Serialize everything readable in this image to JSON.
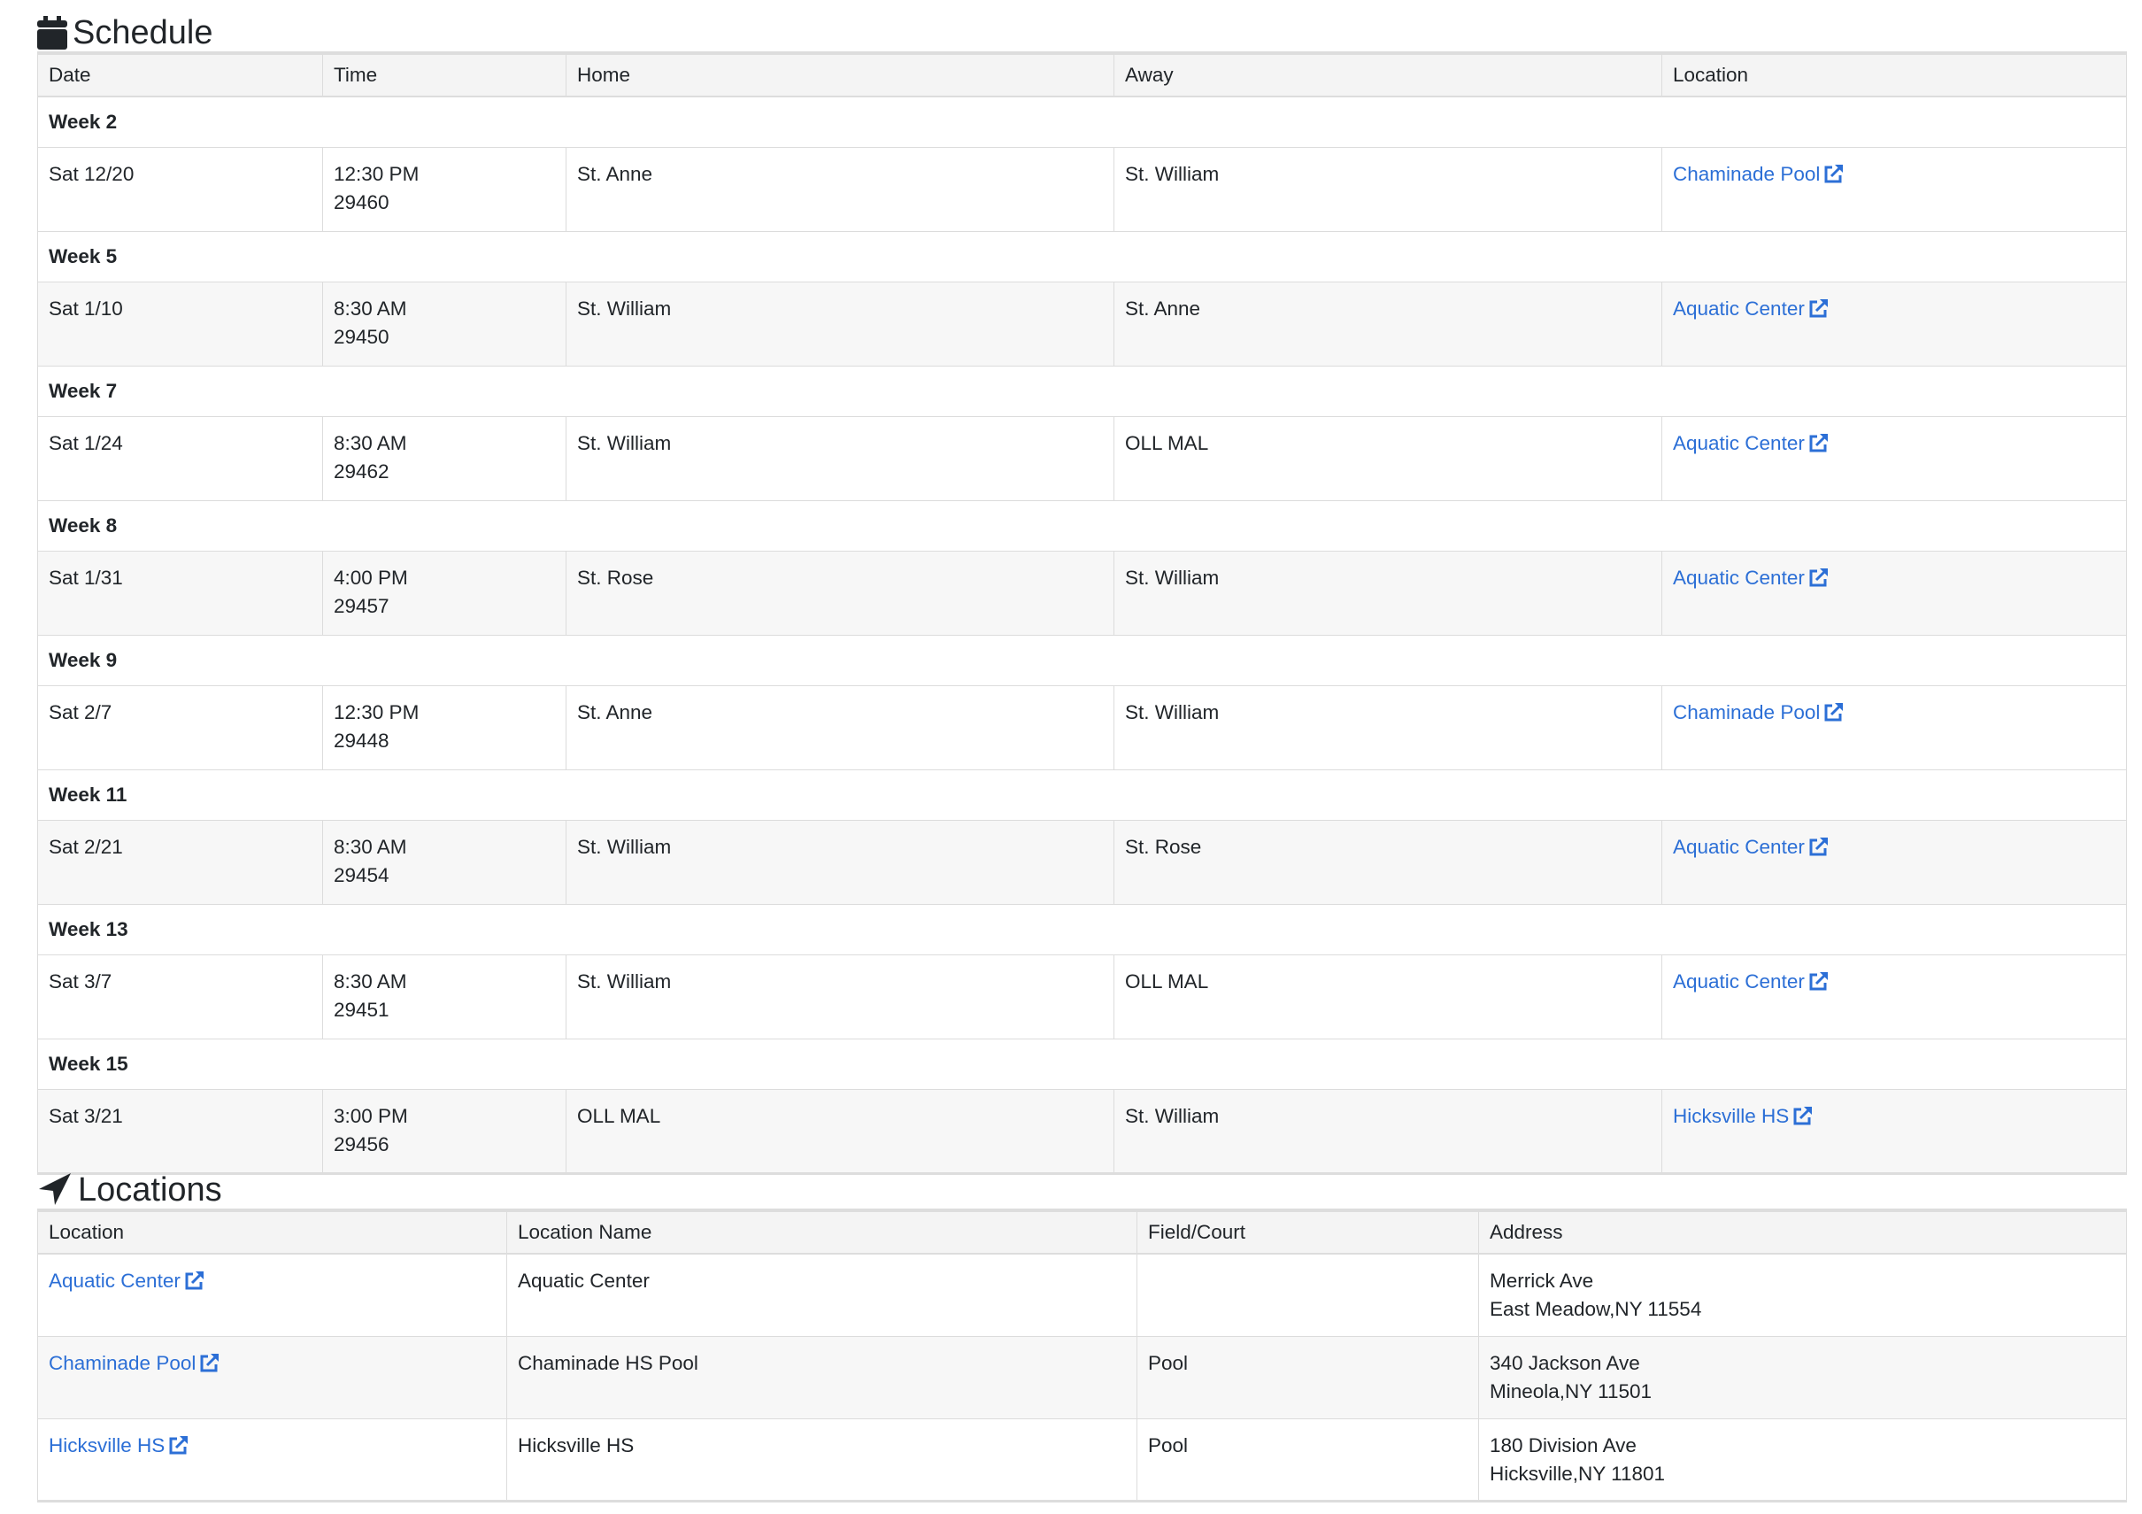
{
  "schedule": {
    "title": "Schedule",
    "columns": [
      "Date",
      "Time",
      "Home",
      "Away",
      "Location"
    ],
    "weeks": [
      {
        "label": "Week 2",
        "date": "Sat 12/20",
        "time": "12:30 PM",
        "game_id": "29460",
        "home": "St. Anne",
        "away": "St. William",
        "location": "Chaminade Pool"
      },
      {
        "label": "Week 5",
        "date": "Sat 1/10",
        "time": "8:30 AM",
        "game_id": "29450",
        "home": "St. William",
        "away": "St. Anne",
        "location": "Aquatic Center"
      },
      {
        "label": "Week 7",
        "date": "Sat 1/24",
        "time": "8:30 AM",
        "game_id": "29462",
        "home": "St. William",
        "away": "OLL MAL",
        "location": "Aquatic Center"
      },
      {
        "label": "Week 8",
        "date": "Sat 1/31",
        "time": "4:00 PM",
        "game_id": "29457",
        "home": "St. Rose",
        "away": "St. William",
        "location": "Aquatic Center"
      },
      {
        "label": "Week 9",
        "date": "Sat 2/7",
        "time": "12:30 PM",
        "game_id": "29448",
        "home": "St. Anne",
        "away": "St. William",
        "location": "Chaminade Pool"
      },
      {
        "label": "Week 11",
        "date": "Sat 2/21",
        "time": "8:30 AM",
        "game_id": "29454",
        "home": "St. William",
        "away": "St. Rose",
        "location": "Aquatic Center"
      },
      {
        "label": "Week 13",
        "date": "Sat 3/7",
        "time": "8:30 AM",
        "game_id": "29451",
        "home": "St. William",
        "away": "OLL MAL",
        "location": "Aquatic Center"
      },
      {
        "label": "Week 15",
        "date": "Sat 3/21",
        "time": "3:00 PM",
        "game_id": "29456",
        "home": "OLL MAL",
        "away": "St. William",
        "location": "Hicksville HS"
      }
    ]
  },
  "locations": {
    "title": "Locations",
    "columns": [
      "Location",
      "Location Name",
      "Field/Court",
      "Address"
    ],
    "rows": [
      {
        "location": "Aquatic Center",
        "name": "Aquatic Center",
        "field": "",
        "address1": "Merrick Ave",
        "address2": "East Meadow,NY 11554"
      },
      {
        "location": "Chaminade Pool",
        "name": "Chaminade HS Pool",
        "field": "Pool",
        "address1": "340 Jackson Ave",
        "address2": "Mineola,NY 11501"
      },
      {
        "location": "Hicksville HS",
        "name": "Hicksville HS",
        "field": "Pool",
        "address1": "180 Division Ave",
        "address2": "Hicksville,NY 11801"
      }
    ]
  },
  "colors": {
    "link": "#2c6fd6",
    "header_bg": "#f4f4f4",
    "stripe_bg": "#f7f7f7"
  },
  "icons": {
    "schedule": "calendar-icon",
    "locations": "location-arrow-icon",
    "link": "external-link-icon"
  }
}
